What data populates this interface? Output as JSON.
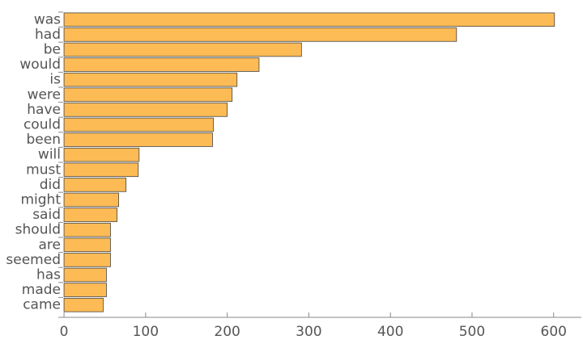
{
  "chart_data": {
    "type": "barh",
    "categories": [
      "was",
      "had",
      "be",
      "would",
      "is",
      "were",
      "have",
      "could",
      "been",
      "will",
      "must",
      "did",
      "might",
      "said",
      "should",
      "are",
      "seemed",
      "has",
      "made",
      "came"
    ],
    "values": [
      601,
      481,
      291,
      239,
      212,
      206,
      200,
      183,
      182,
      92,
      91,
      76,
      67,
      65,
      57,
      57,
      57,
      52,
      52,
      48
    ],
    "color": "#fdbb55",
    "xlim": [
      -7,
      634
    ],
    "xticks": [
      0,
      100,
      200,
      300,
      400,
      500,
      600
    ]
  }
}
